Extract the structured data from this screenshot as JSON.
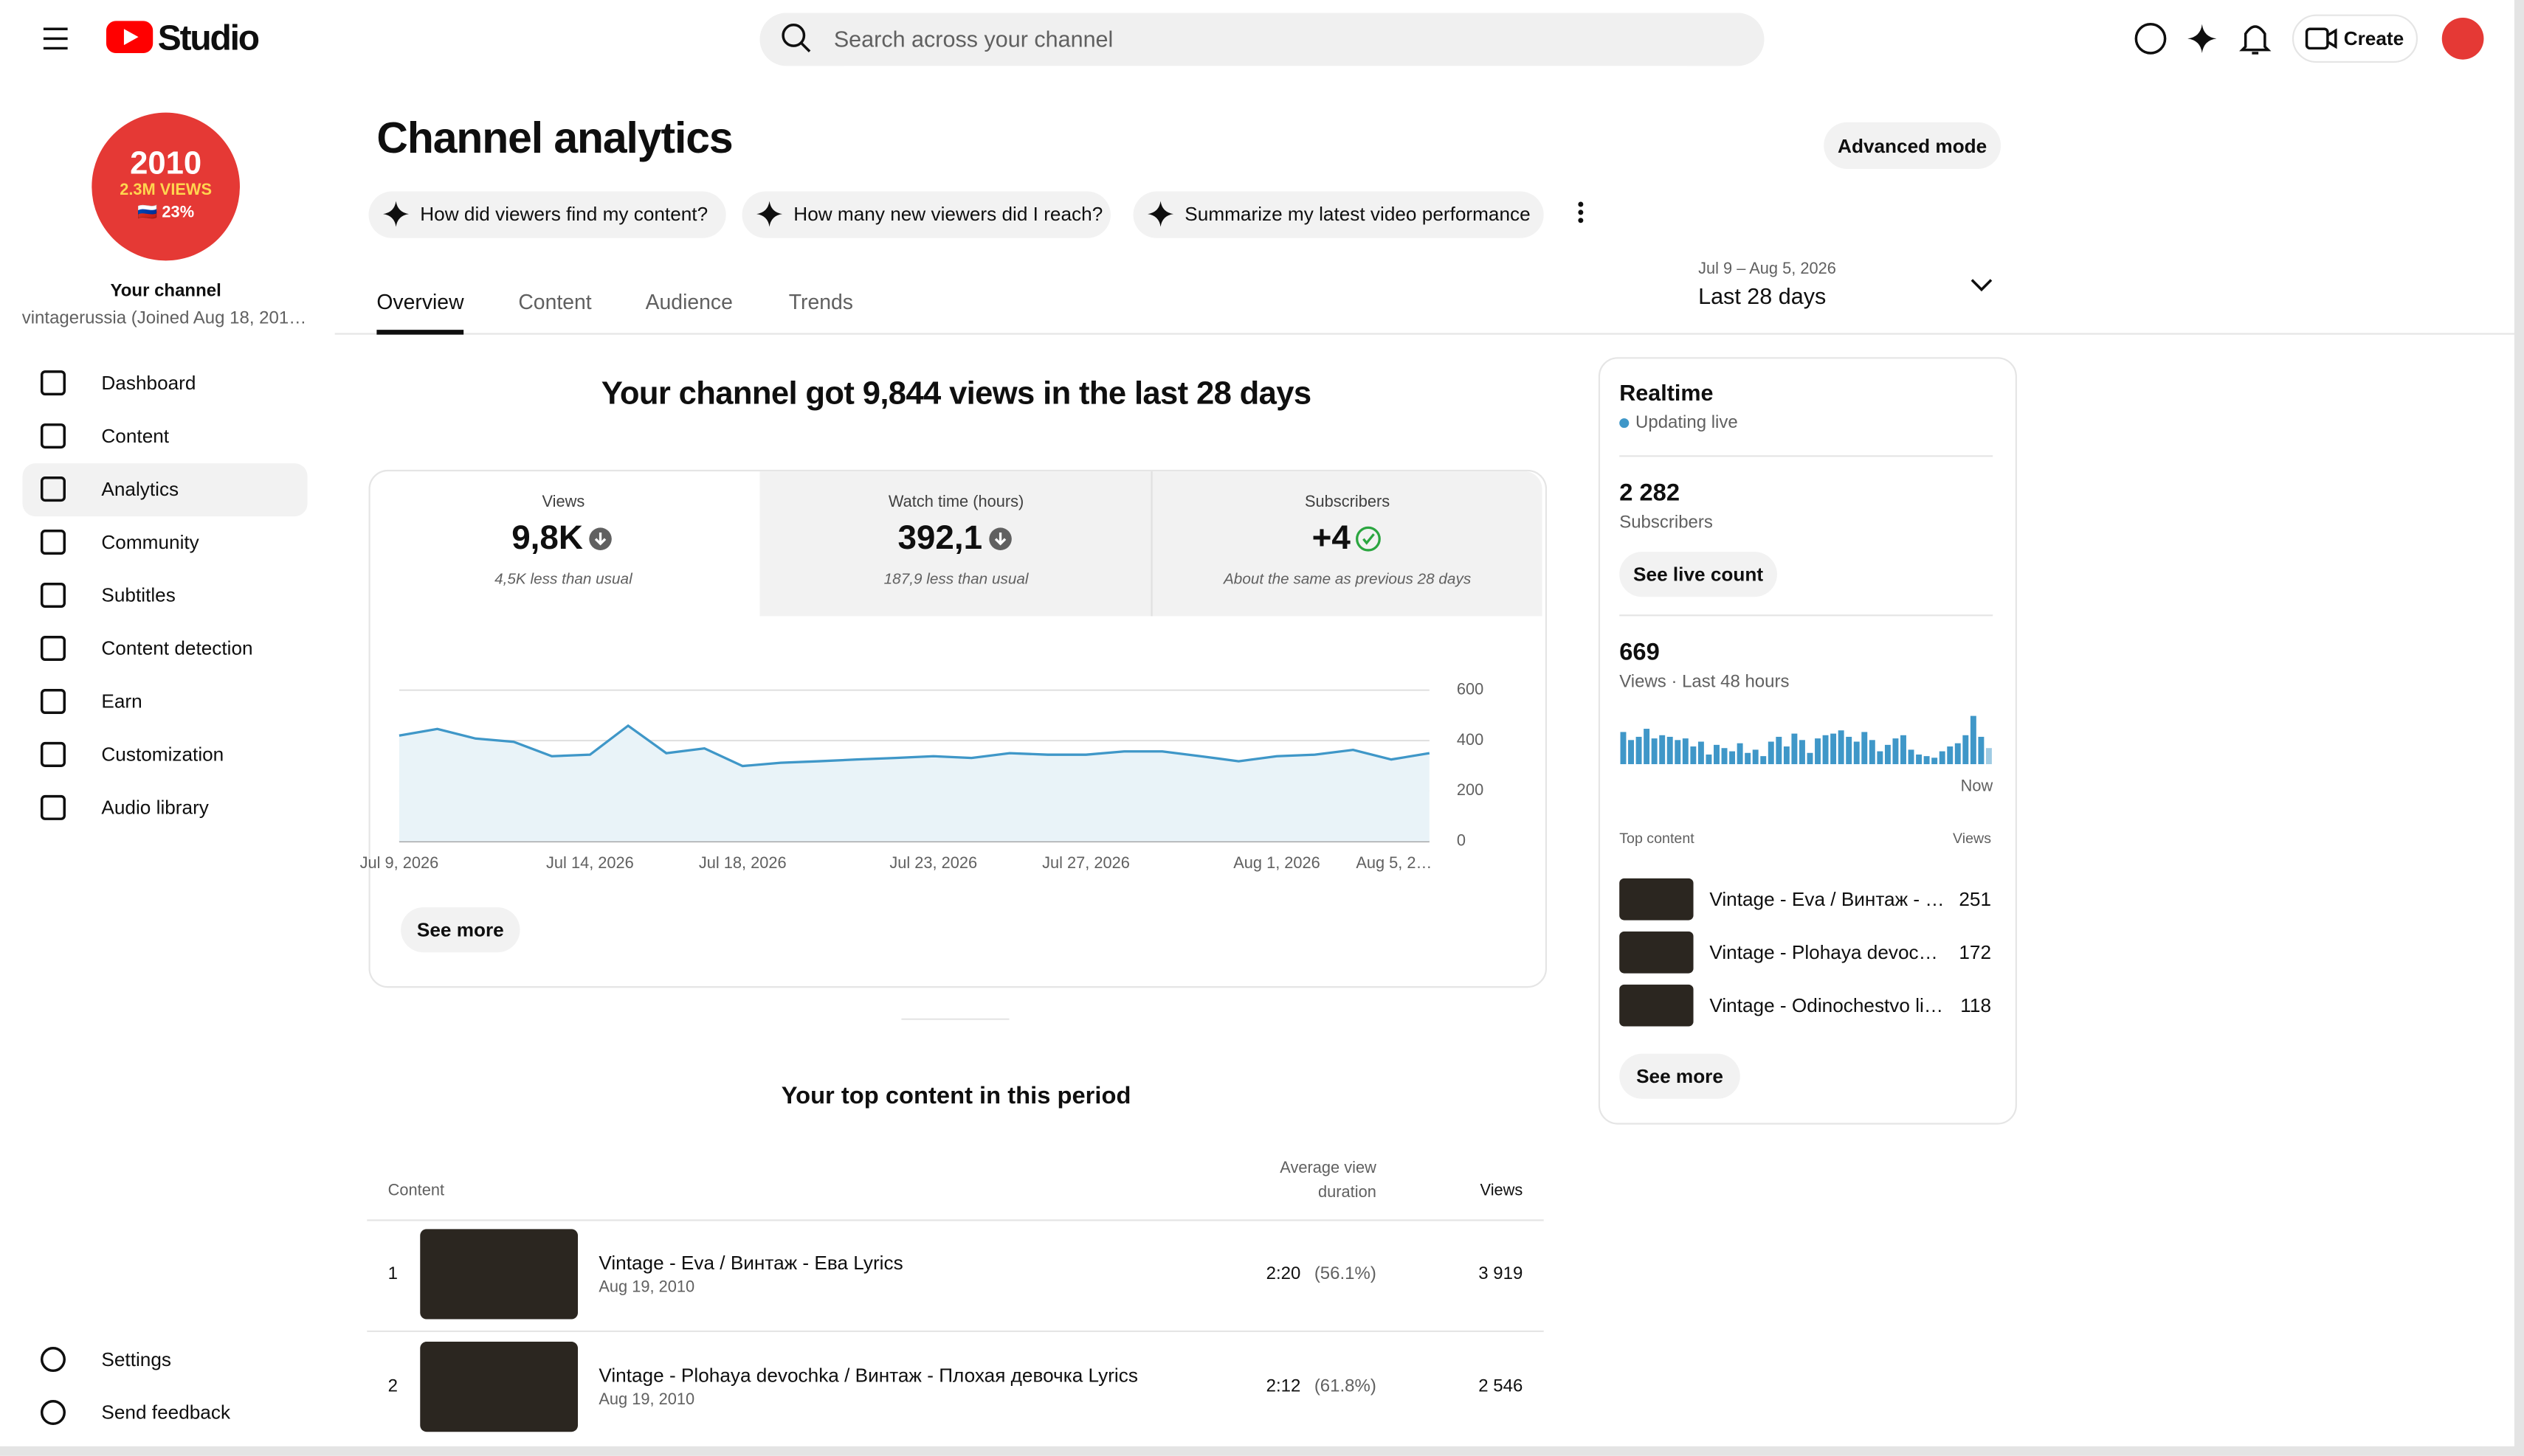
{
  "header": {
    "logo": "Studio",
    "search_placeholder": "Search across your channel",
    "create": "Create"
  },
  "sidebar": {
    "avatar": {
      "year": "2010",
      "views": "2.3M VIEWS",
      "percent": "🇷🇺 23%"
    },
    "channel_label": "Your channel",
    "channel_name": "vintagerussia (Joined Aug 18, 201…",
    "nav": [
      "Dashboard",
      "Content",
      "Analytics",
      "Community",
      "Subtitles",
      "Content detection",
      "Earn",
      "Customization",
      "Audio library"
    ],
    "bottom": [
      "Settings",
      "Send feedback"
    ]
  },
  "page": {
    "title": "Channel analytics",
    "advanced_mode": "Advanced mode",
    "prompts": [
      "How did viewers find my content?",
      "How many new viewers did I reach?",
      "Summarize my latest video performance"
    ],
    "tabs": [
      "Overview",
      "Content",
      "Audience",
      "Trends"
    ],
    "date_range": "Jul 9 – Aug 5, 2026",
    "period": "Last 28 days"
  },
  "summary": {
    "headline": "Your channel got 9,844 views in the last 28 days",
    "metrics": [
      {
        "label": "Views",
        "value": "9,8K",
        "note": "4,5K less than usual"
      },
      {
        "label": "Watch time (hours)",
        "value": "392,1",
        "note": "187,9 less than usual"
      },
      {
        "label": "Subscribers",
        "value": "+4",
        "note": "About the same as previous 28 days"
      }
    ],
    "see_more": "See more"
  },
  "chart_data": [
    {
      "type": "line",
      "color": "#3f97c8",
      "fill": "#e9f3f8",
      "categories": [
        "Jul 9, 2026",
        null,
        null,
        null,
        null,
        "Jul 14, 2026",
        null,
        null,
        null,
        "Jul 18, 2026",
        null,
        null,
        null,
        null,
        "Jul 23, 2026",
        null,
        null,
        null,
        "Jul 27, 2026",
        null,
        null,
        null,
        null,
        "Aug 1, 2026",
        null,
        null,
        null,
        "Aug 5, 2…"
      ],
      "values": [
        420,
        446,
        408,
        395,
        338,
        344,
        459,
        350,
        369,
        299,
        312,
        318,
        325,
        331,
        338,
        331,
        350,
        344,
        344,
        357,
        357,
        338,
        318,
        338,
        344,
        363,
        325,
        350
      ],
      "ylim": [
        0,
        600
      ],
      "yticks": [
        0,
        200,
        400,
        600
      ],
      "grid": true
    },
    {
      "type": "bar",
      "color": "#3f97c8",
      "categories": [
        null,
        null,
        null,
        null,
        null,
        null,
        null,
        null,
        null,
        null,
        null,
        null,
        null,
        null,
        null,
        null,
        null,
        null,
        null,
        null,
        null,
        null,
        null,
        null,
        null,
        null,
        null,
        null,
        null,
        null,
        null,
        null,
        null,
        null,
        null,
        null,
        null,
        null,
        null,
        null,
        null,
        null,
        null,
        null,
        null,
        null,
        null,
        "Now"
      ],
      "values": [
        20,
        15,
        17,
        22,
        16,
        18,
        17,
        15,
        16,
        11,
        14,
        6,
        12,
        10,
        8,
        13,
        7,
        9,
        5,
        14,
        17,
        11,
        19,
        15,
        7,
        16,
        18,
        19,
        21,
        17,
        14,
        20,
        15,
        8,
        12,
        16,
        18,
        9,
        6,
        5,
        4,
        8,
        11,
        13,
        18,
        30,
        17,
        10
      ]
    }
  ],
  "realtime": {
    "title": "Realtime",
    "status": "Updating live",
    "subscribers": "2 282",
    "subscribers_label": "Subscribers",
    "live_count": "See live count",
    "views": "669",
    "views_label": "Views · Last 48 hours",
    "top_label": "Top content",
    "views_col": "Views",
    "rows": [
      {
        "title": "Vintage - Eva / Винтаж - …",
        "views": "251"
      },
      {
        "title": "Vintage - Plohaya devoc…",
        "views": "172"
      },
      {
        "title": "Vintage - Odinochestvo li…",
        "views": "118"
      }
    ],
    "see_more": "See more"
  },
  "top_content": {
    "title": "Your top content in this period",
    "columns": [
      "Content",
      "Average view duration",
      "Views"
    ],
    "rows": [
      {
        "rank": "1",
        "title": "Vintage - Eva / Винтаж - Ева Lyrics",
        "date": "Aug 19, 2010",
        "duration": "2:20",
        "percent": "(56.1%)",
        "views": "3 919"
      },
      {
        "rank": "2",
        "title": "Vintage - Plohaya devochka / Винтаж - Плохая девочка Lyrics",
        "date": "Aug 19, 2010",
        "duration": "2:12",
        "percent": "(61.8%)",
        "views": "2 546"
      }
    ]
  }
}
